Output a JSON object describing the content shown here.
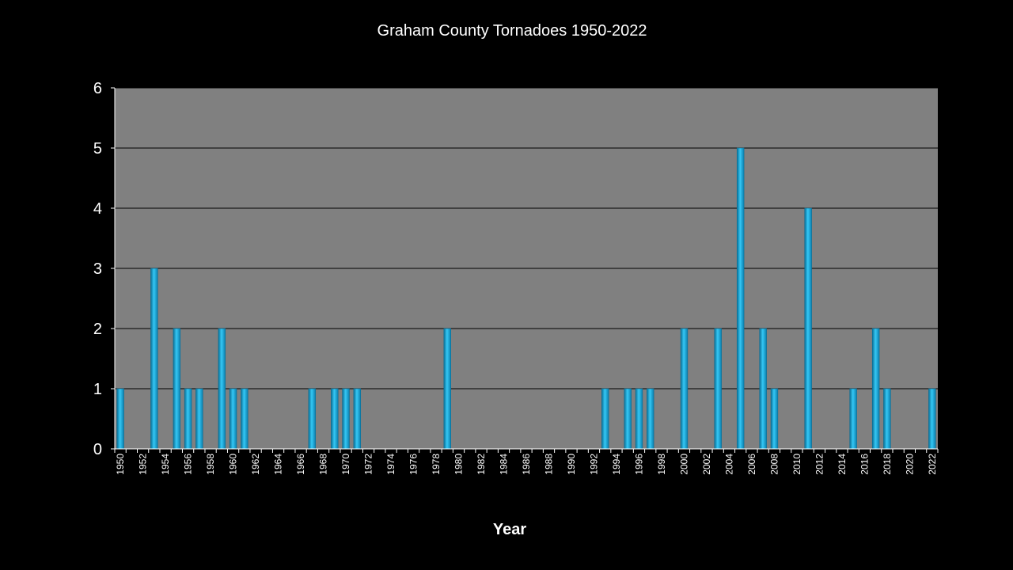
{
  "chart_data": {
    "type": "bar",
    "title": "Graham County Tornadoes 1950-2022",
    "xlabel": "Year",
    "ylabel": "",
    "ylim": [
      0,
      6
    ],
    "yticks": [
      "0",
      "1",
      "2",
      "3",
      "4",
      "5",
      "6"
    ],
    "grid": true,
    "legend": "none",
    "colors": {
      "background": "#000000",
      "plot_area": "#808080",
      "bar": "#1fb4e8",
      "bar_edge": "#0a6f96",
      "gridline": "#000000",
      "text": "#ffffff"
    },
    "categories": [
      "1950",
      "1951",
      "1952",
      "1953",
      "1954",
      "1955",
      "1956",
      "1957",
      "1958",
      "1959",
      "1960",
      "1961",
      "1962",
      "1963",
      "1964",
      "1965",
      "1966",
      "1967",
      "1968",
      "1969",
      "1970",
      "1971",
      "1972",
      "1973",
      "1974",
      "1975",
      "1976",
      "1977",
      "1978",
      "1979",
      "1980",
      "1981",
      "1982",
      "1983",
      "1984",
      "1985",
      "1986",
      "1987",
      "1988",
      "1989",
      "1990",
      "1991",
      "1992",
      "1993",
      "1994",
      "1995",
      "1996",
      "1997",
      "1998",
      "1999",
      "2000",
      "2001",
      "2002",
      "2003",
      "2004",
      "2005",
      "2006",
      "2007",
      "2008",
      "2009",
      "2010",
      "2011",
      "2012",
      "2013",
      "2014",
      "2015",
      "2016",
      "2017",
      "2018",
      "2019",
      "2020",
      "2021",
      "2022"
    ],
    "xtick_labels": [
      "1950",
      "1952",
      "1954",
      "1956",
      "1958",
      "1960",
      "1962",
      "1964",
      "1966",
      "1968",
      "1970",
      "1972",
      "1974",
      "1976",
      "1978",
      "1980",
      "1982",
      "1984",
      "1986",
      "1988",
      "1990",
      "1992",
      "1994",
      "1996",
      "1998",
      "2000",
      "2002",
      "2004",
      "2006",
      "2008",
      "2010",
      "2012",
      "2014",
      "2016",
      "2018",
      "2020",
      "2022"
    ],
    "values": [
      1,
      0,
      0,
      3,
      0,
      2,
      1,
      1,
      0,
      2,
      1,
      1,
      0,
      0,
      0,
      0,
      0,
      1,
      0,
      1,
      1,
      1,
      0,
      0,
      0,
      0,
      0,
      0,
      0,
      2,
      0,
      0,
      0,
      0,
      0,
      0,
      0,
      0,
      0,
      0,
      0,
      0,
      0,
      1,
      0,
      1,
      1,
      1,
      0,
      0,
      2,
      0,
      0,
      2,
      0,
      5,
      0,
      2,
      1,
      0,
      0,
      4,
      0,
      0,
      0,
      1,
      0,
      2,
      1,
      0,
      0,
      0,
      1
    ]
  }
}
